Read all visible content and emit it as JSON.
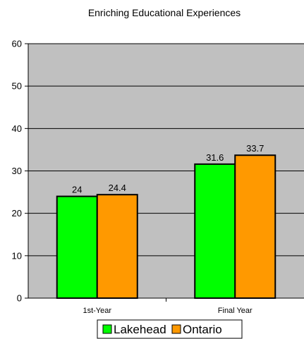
{
  "chart_data": {
    "type": "bar",
    "title": "Enriching Educational Experiences",
    "xlabel": "",
    "ylabel": "",
    "categories": [
      "1st-Year",
      "Final Year"
    ],
    "series": [
      {
        "name": "Lakehead",
        "values": [
          24,
          31.6
        ],
        "color": "#00ff00"
      },
      {
        "name": "Ontario",
        "values": [
          24.4,
          33.7
        ],
        "color": "#ff9900"
      }
    ],
    "ylim": [
      0,
      60
    ],
    "yticks": [
      0,
      10,
      20,
      30,
      40,
      50,
      60
    ],
    "ytick_labels": [
      "0",
      "10",
      "20",
      "30",
      "40",
      "50",
      "60"
    ],
    "data_labels": [
      [
        "24",
        "31.6"
      ],
      [
        "24.4",
        "33.7"
      ]
    ],
    "grid": true,
    "legend_position": "bottom",
    "plot_background": "#c0c0c0"
  }
}
